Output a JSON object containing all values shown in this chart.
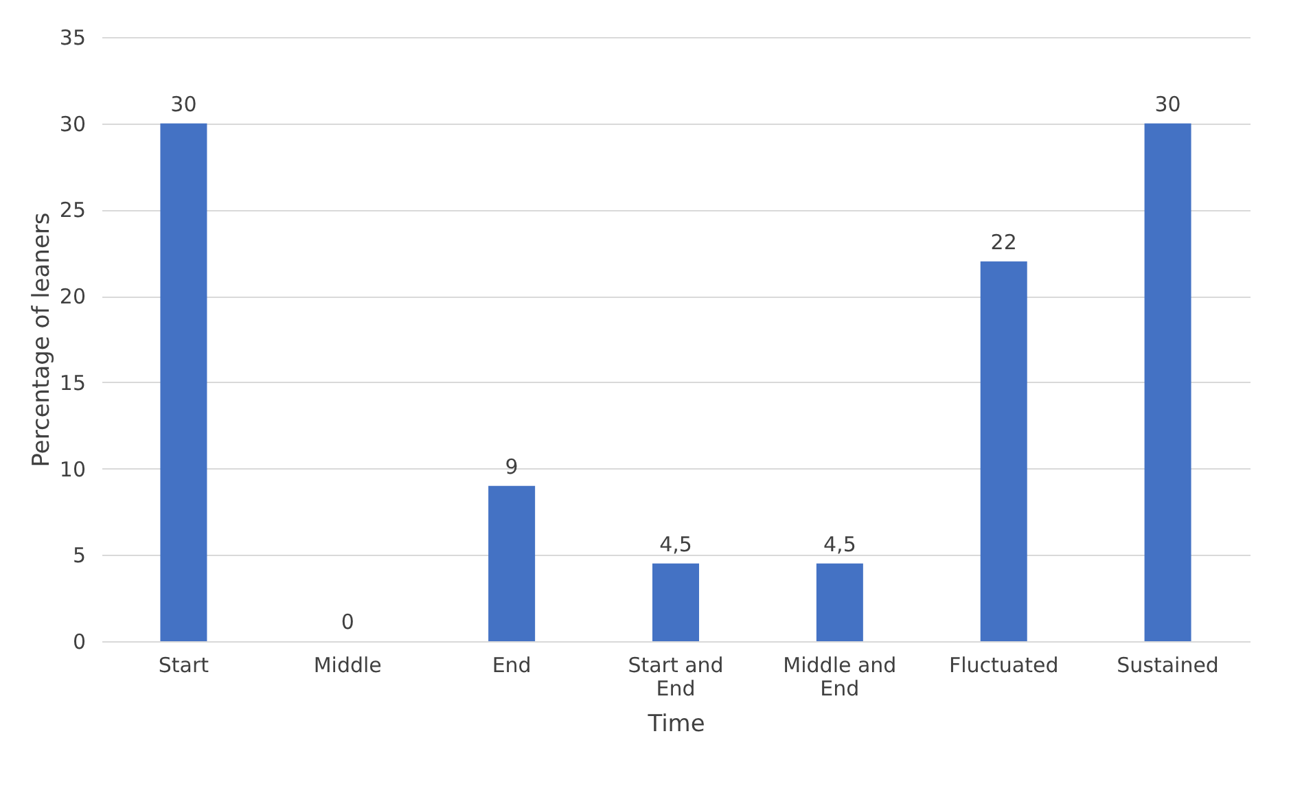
{
  "chart_data": {
    "type": "bar",
    "xlabel": "Time",
    "ylabel": "Percentage of leaners",
    "categories": [
      "Start",
      "Middle",
      "End",
      "Start and End",
      "Middle and End",
      "Fluctuated",
      "Sustained"
    ],
    "values": [
      30,
      0,
      9,
      4.5,
      4.5,
      22,
      30
    ],
    "value_labels": [
      "30",
      "0",
      "9",
      "4,5",
      "4,5",
      "22",
      "30"
    ],
    "color": "#4472c4",
    "ylim": [
      0,
      35
    ],
    "yticks": [
      0,
      5,
      10,
      15,
      20,
      25,
      30,
      35
    ],
    "grid": "y"
  }
}
